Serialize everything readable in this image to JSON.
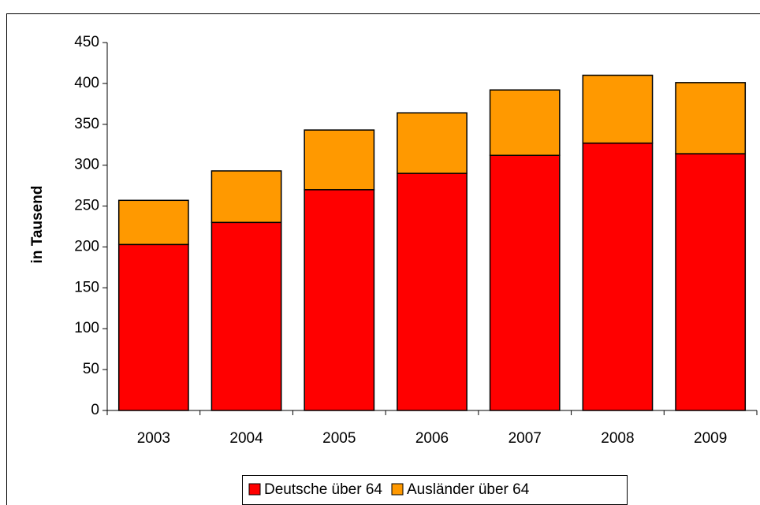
{
  "chart_data": {
    "type": "stacked-bar",
    "y_label": "in Tausend",
    "categories": [
      "2003",
      "2004",
      "2005",
      "2006",
      "2007",
      "2008",
      "2009"
    ],
    "series": [
      {
        "name": "Deutsche über 64",
        "color": "#ff0000",
        "values": [
          203,
          230,
          270,
          290,
          312,
          327,
          314
        ]
      },
      {
        "name": "Ausländer über 64",
        "color": "#ff9900",
        "values": [
          54,
          63,
          73,
          74,
          80,
          83,
          87
        ]
      }
    ],
    "ylim": [
      0,
      450
    ],
    "yticks": [
      0,
      50,
      100,
      150,
      200,
      250,
      300,
      350,
      400,
      450
    ],
    "legend": "bottom"
  }
}
